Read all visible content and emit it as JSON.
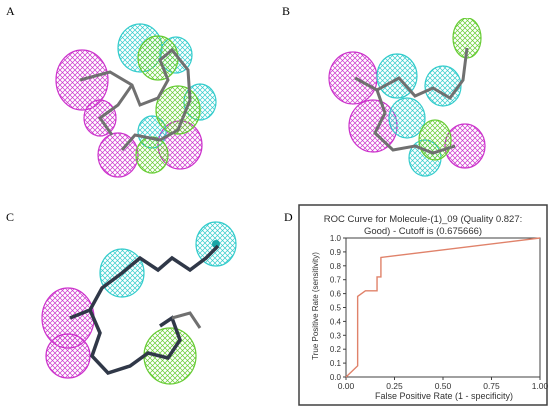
{
  "panel_labels": {
    "a": "A",
    "b": "B",
    "c": "C",
    "d": "D"
  },
  "colors": {
    "hbond_acceptor": "#cc33cc",
    "hydrophobic": "#33cccc",
    "hbond_donor": "#66cc33",
    "bond": "#707070",
    "roc_line": "#e0826a",
    "frame": "#404040"
  },
  "chart_data": {
    "type": "line",
    "title": "ROC Curve for  Molecule-(1)_09  (Quality 0.827: Good)  - Cutoff is (0.675666)",
    "title_lines": [
      "ROC Curve for  Molecule-(1)_09  (Quality 0.827:",
      "Good)  - Cutoff is (0.675666)"
    ],
    "xlabel": "False Positive Rate (1 - specificity)",
    "ylabel": "True Positive Rate (sensitivity)",
    "xlim": [
      0,
      1
    ],
    "ylim": [
      0,
      1
    ],
    "xticks": [
      "0.00",
      "0.25",
      "0.50",
      "0.75",
      "1.00"
    ],
    "yticks": [
      "0.0",
      "0.1",
      "0.2",
      "0.3",
      "0.4",
      "0.5",
      "0.6",
      "0.7",
      "0.8",
      "0.9",
      "1.0"
    ],
    "grid": false,
    "series": [
      {
        "x": [
          0.0,
          0.0,
          0.06,
          0.06,
          0.1,
          0.16,
          0.16,
          0.18,
          0.18,
          1.0
        ],
        "y": [
          0.0,
          0.0,
          0.08,
          0.58,
          0.62,
          0.62,
          0.72,
          0.72,
          0.86,
          1.0
        ]
      }
    ]
  }
}
